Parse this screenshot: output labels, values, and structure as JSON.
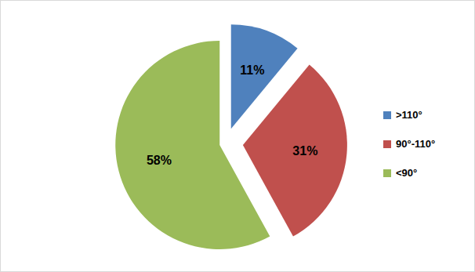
{
  "chart_data": {
    "type": "pie",
    "categories": [
      ">110°",
      "90°-110°",
      "<90°"
    ],
    "values": [
      11,
      31,
      58
    ],
    "value_labels": [
      "11%",
      "31%",
      "58%"
    ],
    "colors": [
      "#4f81bd",
      "#c0504d",
      "#9bbb59"
    ],
    "data_labels": true,
    "legend": "right"
  }
}
